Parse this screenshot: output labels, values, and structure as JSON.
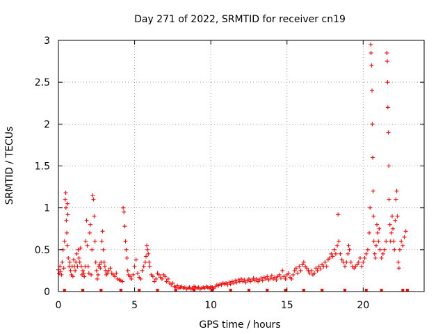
{
  "chart_data": {
    "type": "scatter",
    "title": "Day 271 of 2022, SRMTID for receiver cn19",
    "xlabel": "GPS time / hours",
    "ylabel": "SRMTID / TECUs",
    "xlim": [
      0,
      24
    ],
    "ylim": [
      0,
      3
    ],
    "x_ticks": [
      0,
      5,
      10,
      15,
      20
    ],
    "x_tick_labels": [
      "0",
      "5",
      "10",
      "15",
      "20"
    ],
    "y_ticks": [
      0,
      0.5,
      1,
      1.5,
      2,
      2.5,
      3
    ],
    "y_tick_labels": [
      "0",
      "0.5",
      "1",
      "1.5",
      "2",
      "2.5",
      "3"
    ],
    "grid": true,
    "marker": "+",
    "color": "#ff0000",
    "series": [
      {
        "name": "SRMTID",
        "points": [
          [
            0.0,
            0.26
          ],
          [
            0.05,
            0.22
          ],
          [
            0.1,
            0.3
          ],
          [
            0.15,
            0.24
          ],
          [
            0.2,
            0.2
          ],
          [
            0.25,
            0.35
          ],
          [
            0.3,
            0.5
          ],
          [
            0.35,
            0.28
          ],
          [
            0.4,
            0.6
          ],
          [
            0.45,
            1.1
          ],
          [
            0.48,
            1.18
          ],
          [
            0.5,
            1.0
          ],
          [
            0.52,
            0.85
          ],
          [
            0.55,
            0.7
          ],
          [
            0.58,
            0.55
          ],
          [
            0.6,
            1.05
          ],
          [
            0.62,
            0.92
          ],
          [
            0.65,
            0.4
          ],
          [
            0.7,
            0.3
          ],
          [
            0.75,
            0.35
          ],
          [
            0.8,
            0.25
          ],
          [
            0.85,
            0.2
          ],
          [
            0.9,
            0.3
          ],
          [
            0.95,
            0.18
          ],
          [
            1.0,
            0.38
          ],
          [
            1.05,
            0.3
          ],
          [
            1.1,
            0.25
          ],
          [
            1.15,
            0.35
          ],
          [
            1.2,
            0.45
          ],
          [
            1.25,
            0.3
          ],
          [
            1.3,
            0.5
          ],
          [
            1.35,
            0.4
          ],
          [
            1.4,
            0.35
          ],
          [
            1.45,
            0.52
          ],
          [
            1.5,
            0.3
          ],
          [
            1.55,
            0.2
          ],
          [
            1.6,
            0.25
          ],
          [
            1.65,
            0.22
          ],
          [
            1.7,
            0.18
          ],
          [
            1.75,
            0.3
          ],
          [
            1.8,
            0.6
          ],
          [
            1.85,
            0.85
          ],
          [
            1.9,
            0.55
          ],
          [
            1.95,
            0.3
          ],
          [
            2.0,
            0.22
          ],
          [
            2.05,
            0.7
          ],
          [
            2.1,
            0.8
          ],
          [
            2.15,
            0.2
          ],
          [
            2.2,
            0.5
          ],
          [
            2.25,
            1.15
          ],
          [
            2.3,
            1.1
          ],
          [
            2.35,
            0.9
          ],
          [
            2.4,
            0.6
          ],
          [
            2.45,
            0.35
          ],
          [
            2.5,
            0.25
          ],
          [
            2.55,
            0.15
          ],
          [
            2.6,
            0.2
          ],
          [
            2.65,
            0.3
          ],
          [
            2.7,
            0.32
          ],
          [
            2.75,
            0.28
          ],
          [
            2.8,
            0.35
          ],
          [
            2.85,
            0.6
          ],
          [
            2.9,
            0.72
          ],
          [
            2.95,
            0.5
          ],
          [
            3.0,
            0.35
          ],
          [
            3.05,
            0.3
          ],
          [
            3.1,
            0.25
          ],
          [
            3.15,
            0.2
          ],
          [
            3.2,
            0.22
          ],
          [
            3.3,
            0.25
          ],
          [
            3.4,
            0.28
          ],
          [
            3.5,
            0.22
          ],
          [
            3.6,
            0.2
          ],
          [
            3.7,
            0.18
          ],
          [
            3.8,
            0.22
          ],
          [
            3.9,
            0.15
          ],
          [
            4.0,
            0.14
          ],
          [
            4.1,
            0.13
          ],
          [
            4.2,
            0.12
          ],
          [
            4.25,
            1.0
          ],
          [
            4.3,
            0.95
          ],
          [
            4.35,
            0.78
          ],
          [
            4.4,
            0.6
          ],
          [
            4.45,
            0.5
          ],
          [
            4.5,
            0.4
          ],
          [
            4.55,
            0.25
          ],
          [
            4.6,
            0.2
          ],
          [
            4.7,
            0.18
          ],
          [
            4.8,
            0.15
          ],
          [
            4.9,
            0.2
          ],
          [
            5.0,
            0.3
          ],
          [
            5.1,
            0.38
          ],
          [
            5.2,
            0.22
          ],
          [
            5.3,
            0.17
          ],
          [
            5.4,
            0.15
          ],
          [
            5.5,
            0.25
          ],
          [
            5.6,
            0.3
          ],
          [
            5.7,
            0.35
          ],
          [
            5.75,
            0.42
          ],
          [
            5.8,
            0.55
          ],
          [
            5.85,
            0.5
          ],
          [
            5.9,
            0.45
          ],
          [
            5.95,
            0.35
          ],
          [
            6.0,
            0.3
          ],
          [
            6.1,
            0.2
          ],
          [
            6.2,
            0.18
          ],
          [
            6.3,
            0.12
          ],
          [
            6.4,
            0.15
          ],
          [
            6.5,
            0.22
          ],
          [
            6.6,
            0.2
          ],
          [
            6.7,
            0.17
          ],
          [
            6.8,
            0.15
          ],
          [
            6.9,
            0.2
          ],
          [
            7.0,
            0.18
          ],
          [
            7.1,
            0.12
          ],
          [
            7.2,
            0.15
          ],
          [
            7.3,
            0.1
          ],
          [
            7.4,
            0.08
          ],
          [
            7.5,
            0.1
          ],
          [
            7.6,
            0.06
          ],
          [
            7.7,
            0.05
          ],
          [
            7.8,
            0.07
          ],
          [
            7.9,
            0.04
          ],
          [
            8.0,
            0.05
          ],
          [
            8.1,
            0.06
          ],
          [
            8.2,
            0.04
          ],
          [
            8.3,
            0.05
          ],
          [
            8.4,
            0.03
          ],
          [
            8.5,
            0.04
          ],
          [
            8.6,
            0.05
          ],
          [
            8.7,
            0.03
          ],
          [
            8.8,
            0.04
          ],
          [
            8.9,
            0.06
          ],
          [
            9.0,
            0.05
          ],
          [
            9.1,
            0.04
          ],
          [
            9.2,
            0.05
          ],
          [
            9.3,
            0.03
          ],
          [
            9.4,
            0.04
          ],
          [
            9.5,
            0.05
          ],
          [
            9.6,
            0.04
          ],
          [
            9.7,
            0.06
          ],
          [
            9.8,
            0.05
          ],
          [
            9.9,
            0.04
          ],
          [
            10.0,
            0.06
          ],
          [
            10.1,
            0.05
          ],
          [
            10.2,
            0.04
          ],
          [
            10.3,
            0.06
          ],
          [
            10.4,
            0.08
          ],
          [
            10.5,
            0.07
          ],
          [
            10.6,
            0.09
          ],
          [
            10.7,
            0.08
          ],
          [
            10.8,
            0.1
          ],
          [
            10.9,
            0.09
          ],
          [
            11.0,
            0.1
          ],
          [
            11.1,
            0.08
          ],
          [
            11.2,
            0.11
          ],
          [
            11.3,
            0.09
          ],
          [
            11.4,
            0.12
          ],
          [
            11.5,
            0.1
          ],
          [
            11.6,
            0.13
          ],
          [
            11.7,
            0.11
          ],
          [
            11.8,
            0.14
          ],
          [
            11.9,
            0.12
          ],
          [
            12.0,
            0.15
          ],
          [
            12.1,
            0.12
          ],
          [
            12.2,
            0.14
          ],
          [
            12.3,
            0.11
          ],
          [
            12.4,
            0.13
          ],
          [
            12.5,
            0.15
          ],
          [
            12.6,
            0.12
          ],
          [
            12.7,
            0.14
          ],
          [
            12.8,
            0.16
          ],
          [
            12.9,
            0.13
          ],
          [
            13.0,
            0.15
          ],
          [
            13.1,
            0.12
          ],
          [
            13.2,
            0.14
          ],
          [
            13.3,
            0.16
          ],
          [
            13.4,
            0.13
          ],
          [
            13.5,
            0.17
          ],
          [
            13.6,
            0.15
          ],
          [
            13.7,
            0.18
          ],
          [
            13.8,
            0.14
          ],
          [
            13.9,
            0.16
          ],
          [
            14.0,
            0.19
          ],
          [
            14.1,
            0.15
          ],
          [
            14.2,
            0.17
          ],
          [
            14.3,
            0.14
          ],
          [
            14.4,
            0.18
          ],
          [
            14.5,
            0.2
          ],
          [
            14.6,
            0.16
          ],
          [
            14.7,
            0.25
          ],
          [
            14.8,
            0.18
          ],
          [
            14.9,
            0.15
          ],
          [
            15.0,
            0.2
          ],
          [
            15.1,
            0.22
          ],
          [
            15.2,
            0.17
          ],
          [
            15.3,
            0.15
          ],
          [
            15.4,
            0.2
          ],
          [
            15.5,
            0.25
          ],
          [
            15.6,
            0.28
          ],
          [
            15.7,
            0.22
          ],
          [
            15.8,
            0.3
          ],
          [
            15.9,
            0.25
          ],
          [
            16.0,
            0.32
          ],
          [
            16.1,
            0.35
          ],
          [
            16.2,
            0.3
          ],
          [
            16.3,
            0.28
          ],
          [
            16.4,
            0.25
          ],
          [
            16.5,
            0.22
          ],
          [
            16.6,
            0.25
          ],
          [
            16.7,
            0.2
          ],
          [
            16.8,
            0.22
          ],
          [
            16.9,
            0.28
          ],
          [
            17.0,
            0.25
          ],
          [
            17.1,
            0.3
          ],
          [
            17.2,
            0.27
          ],
          [
            17.3,
            0.32
          ],
          [
            17.4,
            0.3
          ],
          [
            17.5,
            0.35
          ],
          [
            17.6,
            0.3
          ],
          [
            17.7,
            0.38
          ],
          [
            17.8,
            0.4
          ],
          [
            17.9,
            0.45
          ],
          [
            18.0,
            0.42
          ],
          [
            18.1,
            0.5
          ],
          [
            18.2,
            0.45
          ],
          [
            18.3,
            0.55
          ],
          [
            18.35,
            0.92
          ],
          [
            18.4,
            0.6
          ],
          [
            18.5,
            0.45
          ],
          [
            18.6,
            0.38
          ],
          [
            18.7,
            0.35
          ],
          [
            18.8,
            0.3
          ],
          [
            18.9,
            0.35
          ],
          [
            19.0,
            0.45
          ],
          [
            19.05,
            0.55
          ],
          [
            19.1,
            0.5
          ],
          [
            19.2,
            0.35
          ],
          [
            19.3,
            0.3
          ],
          [
            19.4,
            0.28
          ],
          [
            19.5,
            0.3
          ],
          [
            19.6,
            0.32
          ],
          [
            19.7,
            0.35
          ],
          [
            19.8,
            0.4
          ],
          [
            19.9,
            0.3
          ],
          [
            20.0,
            0.35
          ],
          [
            20.1,
            0.4
          ],
          [
            20.2,
            0.45
          ],
          [
            20.3,
            0.5
          ],
          [
            20.4,
            0.7
          ],
          [
            20.45,
            1.0
          ],
          [
            20.5,
            2.95
          ],
          [
            20.52,
            2.85
          ],
          [
            20.55,
            2.7
          ],
          [
            20.58,
            2.4
          ],
          [
            20.6,
            2.0
          ],
          [
            20.62,
            1.6
          ],
          [
            20.65,
            1.2
          ],
          [
            20.68,
            0.9
          ],
          [
            20.7,
            0.6
          ],
          [
            20.75,
            0.45
          ],
          [
            20.8,
            0.4
          ],
          [
            20.85,
            0.55
          ],
          [
            20.9,
            0.8
          ],
          [
            20.95,
            0.7
          ],
          [
            21.0,
            0.6
          ],
          [
            21.05,
            0.75
          ],
          [
            21.1,
            0.5
          ],
          [
            21.2,
            0.4
          ],
          [
            21.3,
            0.45
          ],
          [
            21.4,
            0.5
          ],
          [
            21.5,
            0.6
          ],
          [
            21.55,
            2.85
          ],
          [
            21.58,
            2.75
          ],
          [
            21.6,
            2.5
          ],
          [
            21.62,
            2.2
          ],
          [
            21.65,
            1.9
          ],
          [
            21.68,
            1.5
          ],
          [
            21.7,
            1.1
          ],
          [
            21.75,
            0.8
          ],
          [
            21.8,
            0.6
          ],
          [
            21.85,
            0.7
          ],
          [
            21.9,
            0.9
          ],
          [
            21.95,
            0.75
          ],
          [
            22.0,
            0.6
          ],
          [
            22.05,
            0.5
          ],
          [
            22.1,
            0.85
          ],
          [
            22.15,
            1.1
          ],
          [
            22.2,
            1.2
          ],
          [
            22.25,
            0.9
          ],
          [
            22.3,
            0.35
          ],
          [
            22.35,
            0.28
          ],
          [
            22.4,
            0.5
          ],
          [
            22.5,
            0.6
          ],
          [
            22.6,
            0.55
          ],
          [
            22.7,
            0.65
          ],
          [
            22.8,
            0.72
          ]
        ]
      }
    ],
    "zero_markers_x": [
      0.4,
      1.6,
      2.8,
      4.1,
      5.3,
      6.5,
      7.7,
      8.9,
      10.1,
      11.3,
      12.5,
      13.7,
      14.9,
      16.1,
      17.3,
      18.8,
      20.2,
      21.2,
      22.6,
      22.9
    ]
  }
}
